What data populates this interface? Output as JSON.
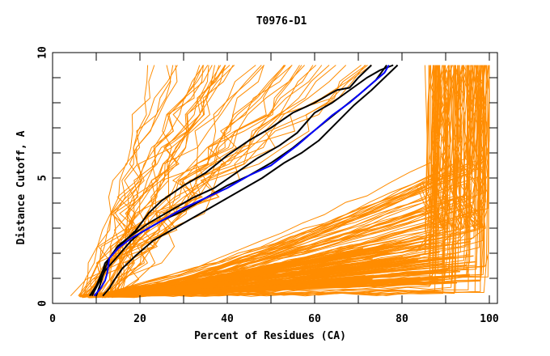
{
  "chart_data": {
    "type": "line",
    "title": "T0976-D1",
    "xlabel": "Percent of Residues (CA)",
    "ylabel": "Distance Cutoff, A",
    "xlim": [
      0,
      102
    ],
    "ylim": [
      0,
      10
    ],
    "x_ticks": [
      0,
      20,
      40,
      60,
      80,
      100
    ],
    "y_ticks": [
      0,
      5,
      10
    ],
    "grid": false,
    "legend": "none",
    "colors": {
      "others": "#ff8c00",
      "highlight": "#0000ff",
      "reference": "#000000",
      "axis": "#000000"
    },
    "series": [
      {
        "name": "highlighted-model",
        "color": "#0000ff",
        "x": [
          9.5,
          11,
          12,
          12.5,
          13,
          15,
          18,
          21,
          25,
          30,
          35,
          40,
          45,
          50,
          53,
          56,
          60,
          64,
          68,
          72,
          74,
          76,
          77
        ],
        "y": [
          0.3,
          0.6,
          0.9,
          1.2,
          1.8,
          2.2,
          2.6,
          2.9,
          3.3,
          3.8,
          4.2,
          4.6,
          5.1,
          5.5,
          5.9,
          6.3,
          6.9,
          7.5,
          8.0,
          8.6,
          8.9,
          9.2,
          9.5
        ]
      },
      {
        "name": "black-1",
        "color": "#000000",
        "x": [
          8.5,
          10,
          11.5,
          12,
          14,
          16,
          19,
          22,
          25,
          30,
          35,
          40,
          45,
          50,
          55,
          60,
          65,
          68,
          70,
          73
        ],
        "y": [
          0.3,
          0.7,
          1.3,
          1.6,
          2.0,
          2.4,
          2.9,
          3.6,
          4.1,
          4.7,
          5.2,
          5.9,
          6.5,
          7.0,
          7.6,
          8.0,
          8.5,
          8.6,
          9.0,
          9.5
        ]
      },
      {
        "name": "black-2",
        "color": "#000000",
        "x": [
          10,
          11,
          12,
          13,
          15,
          18,
          22,
          27,
          32,
          37,
          42,
          47,
          52,
          56,
          60,
          64,
          68,
          72,
          75,
          78
        ],
        "y": [
          0.3,
          0.8,
          1.4,
          1.8,
          2.3,
          2.7,
          3.2,
          3.7,
          4.2,
          4.6,
          5.2,
          5.8,
          6.3,
          6.8,
          7.6,
          8.0,
          8.5,
          9.0,
          9.3,
          9.5
        ]
      },
      {
        "name": "black-3",
        "color": "#000000",
        "x": [
          11.5,
          13,
          14,
          16,
          19,
          23,
          28,
          33,
          38,
          43,
          48,
          53,
          57,
          61,
          65,
          69,
          73,
          76,
          79
        ],
        "y": [
          0.3,
          0.6,
          0.9,
          1.4,
          1.9,
          2.5,
          3.0,
          3.5,
          4.0,
          4.5,
          5.0,
          5.6,
          6.0,
          6.5,
          7.2,
          7.9,
          8.5,
          9.0,
          9.5
        ]
      },
      {
        "name": "black-4",
        "color": "#000000",
        "x": [
          9,
          10.5,
          12,
          14,
          16,
          18,
          20,
          22,
          25,
          30,
          35,
          40,
          45,
          50,
          55,
          60,
          65,
          70,
          74,
          76.5
        ],
        "y": [
          0.3,
          0.8,
          1.3,
          1.7,
          2.1,
          2.5,
          2.8,
          3.0,
          3.3,
          3.7,
          4.2,
          4.7,
          5.1,
          5.6,
          6.2,
          6.9,
          7.6,
          8.3,
          8.9,
          9.5
        ]
      }
    ],
    "others_description": "approx. 150 orange model curves spanning 5-100% of residues, dense fan at low cutoffs and a saturated band near 90-100%"
  }
}
